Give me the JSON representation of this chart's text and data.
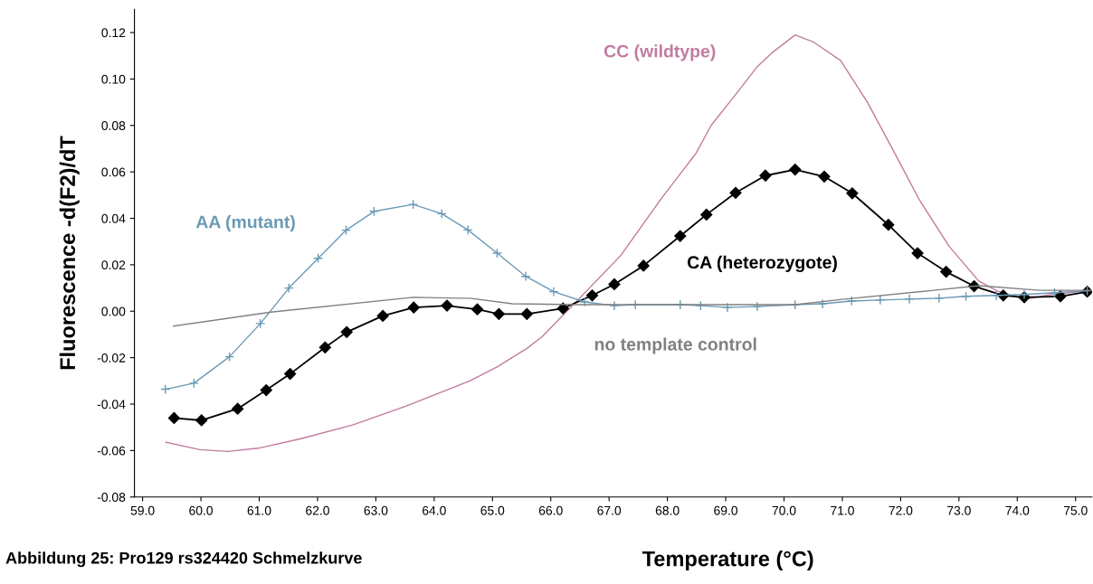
{
  "chart_data": {
    "type": "line",
    "xlabel": "Temperature (°C)",
    "ylabel": "Fluorescence -d(F2)/dT",
    "annotations": [
      "Abbildung 25: Pro129 rs324420 Schmelzkurve"
    ],
    "xlim": [
      58.86,
      75.28
    ],
    "ylim": [
      -0.08,
      0.13
    ],
    "xticks": [
      {
        "value": 59,
        "label": "59.0"
      },
      {
        "value": 60,
        "label": "60.0"
      },
      {
        "value": 61,
        "label": "61.0"
      },
      {
        "value": 62,
        "label": "62.0"
      },
      {
        "value": 63,
        "label": "63.0"
      },
      {
        "value": 64,
        "label": "64.0"
      },
      {
        "value": 65,
        "label": "65.0"
      },
      {
        "value": 66,
        "label": "66.0"
      },
      {
        "value": 67,
        "label": "67.0"
      },
      {
        "value": 68,
        "label": "68.0"
      },
      {
        "value": 69,
        "label": "69.0"
      },
      {
        "value": 70,
        "label": "70.0"
      },
      {
        "value": 71,
        "label": "71.0"
      },
      {
        "value": 72,
        "label": "72.0"
      },
      {
        "value": 73,
        "label": "73.0"
      },
      {
        "value": 74,
        "label": "74.0"
      },
      {
        "value": 75,
        "label": "75.0"
      }
    ],
    "yticks": [
      {
        "value": -0.08,
        "label": "-0.08"
      },
      {
        "value": -0.06,
        "label": "-0.06"
      },
      {
        "value": -0.04,
        "label": "-0.04"
      },
      {
        "value": -0.02,
        "label": "-0.02"
      },
      {
        "value": 0,
        "label": "0.00"
      },
      {
        "value": 0.02,
        "label": "0.02"
      },
      {
        "value": 0.04,
        "label": "0.04"
      },
      {
        "value": 0.06,
        "label": "0.06"
      },
      {
        "value": 0.08,
        "label": "0.08"
      },
      {
        "value": 0.1,
        "label": "0.10"
      },
      {
        "value": 0.12,
        "label": "0.12"
      }
    ],
    "grid": false,
    "legend": false,
    "line_style": "solid",
    "series": [
      {
        "name": "CC (wildtype)",
        "color": "#c27ba0",
        "marker": "none",
        "x": [
          59.4,
          59.98,
          60.46,
          60.98,
          61.7,
          62.6,
          63.5,
          64.61,
          65.08,
          65.59,
          65.85,
          66.47,
          67.2,
          67.91,
          68.49,
          68.75,
          69.16,
          69.53,
          69.78,
          70.19,
          70.5,
          70.97,
          71.43,
          71.9,
          72.32,
          72.83,
          73.34,
          73.65,
          74.12,
          74.53,
          75.26
        ],
        "values": [
          -0.0564,
          -0.0596,
          -0.0604,
          -0.059,
          -0.055,
          -0.049,
          -0.041,
          -0.03,
          -0.024,
          -0.016,
          -0.011,
          0.005,
          0.024,
          0.049,
          0.068,
          0.08,
          0.093,
          0.105,
          0.111,
          0.119,
          0.116,
          0.108,
          0.09,
          0.068,
          0.048,
          0.028,
          0.013,
          0.0088,
          0.005,
          0.007,
          0.009
        ]
      },
      {
        "name": "CA (heterozygote)",
        "color": "#000000",
        "marker": "diamond",
        "x": [
          59.54,
          60.01,
          60.63,
          61.12,
          61.53,
          62.13,
          62.5,
          63.12,
          63.65,
          64.22,
          64.74,
          65.11,
          65.59,
          66.21,
          66.71,
          67.09,
          67.59,
          68.22,
          68.67,
          69.17,
          69.68,
          70.19,
          70.69,
          71.17,
          71.79,
          72.29,
          72.78,
          73.26,
          73.76,
          74.12,
          74.74,
          75.2
        ],
        "values": [
          -0.046,
          -0.047,
          -0.042,
          -0.034,
          -0.027,
          -0.0156,
          -0.009,
          -0.002,
          0.0016,
          0.0024,
          0.0008,
          -0.0012,
          -0.0012,
          0.0012,
          0.0068,
          0.0116,
          0.0196,
          0.0324,
          0.0416,
          0.051,
          0.0584,
          0.061,
          0.058,
          0.0508,
          0.0372,
          0.025,
          0.017,
          0.0108,
          0.0068,
          0.006,
          0.0064,
          0.0084
        ]
      },
      {
        "name": "AA (mutant)",
        "color": "#6a9ab5",
        "marker": "cross",
        "x": [
          59.39,
          59.88,
          60.49,
          61.02,
          61.51,
          62.01,
          62.49,
          62.97,
          63.64,
          64.13,
          64.58,
          65.08,
          65.57,
          66.05,
          66.58,
          67.09,
          67.45,
          68.22,
          68.57,
          69.03,
          69.54,
          70.19,
          70.66,
          71.16,
          71.65,
          72.15,
          72.66,
          73.12,
          73.64,
          74.12,
          74.64,
          75.2
        ],
        "values": [
          -0.0336,
          -0.031,
          -0.0196,
          -0.0053,
          0.01,
          0.0228,
          0.0349,
          0.043,
          0.046,
          0.042,
          0.035,
          0.025,
          0.015,
          0.0084,
          0.004,
          0.0024,
          0.0028,
          0.0028,
          0.0024,
          0.0016,
          0.002,
          0.0028,
          0.0032,
          0.0044,
          0.0048,
          0.0052,
          0.0056,
          0.0064,
          0.0068,
          0.0072,
          0.008,
          0.0088
        ]
      },
      {
        "name": "no template control",
        "color": "#808080",
        "marker": "none",
        "x": [
          59.53,
          61.2,
          63.64,
          64.46,
          64.61,
          65.34,
          66.47,
          68.44,
          70.19,
          70.97,
          72.57,
          73.34,
          74.38,
          75.26
        ],
        "values": [
          -0.0064,
          -0.0004,
          0.006,
          0.0056,
          0.0056,
          0.0032,
          0.0028,
          0.0028,
          0.0028,
          0.005,
          0.009,
          0.011,
          0.009,
          0.009
        ]
      }
    ]
  }
}
